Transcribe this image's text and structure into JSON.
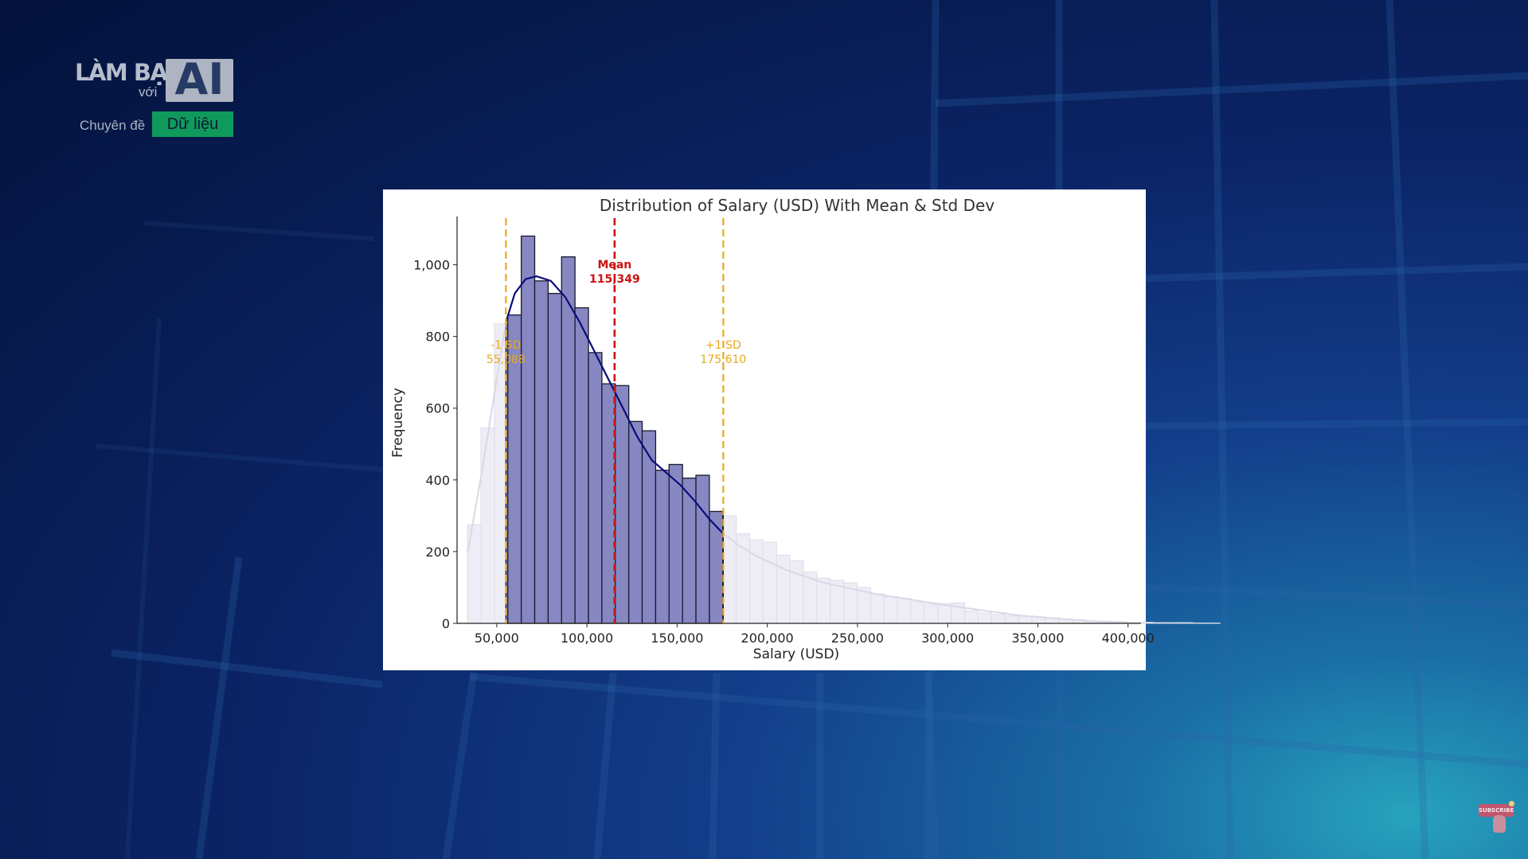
{
  "logo": {
    "brand_top": "LÀM BẠN",
    "brand_voi": "với",
    "brand_ai": "AI",
    "topic_prefix": "Chuyên đề",
    "topic_tag": "Dữ liệu",
    "tag_color": "#0f9a5c"
  },
  "subscribe": {
    "label": "SUBSCRIBE",
    "icon": "pointer-hand-icon"
  },
  "chart_data": {
    "type": "bar",
    "title": "Distribution of Salary (USD) With Mean & Std Dev",
    "xlabel": "Salary (USD)",
    "ylabel": "Frequency",
    "xlim": [
      28000,
      405000
    ],
    "ylim": [
      0,
      1130
    ],
    "x_ticks": [
      50000,
      100000,
      150000,
      200000,
      250000,
      300000,
      350000,
      400000
    ],
    "x_tick_labels": [
      "50,000",
      "100,000",
      "150,000",
      "200,000",
      "250,000",
      "300,000",
      "350,000",
      "400,000"
    ],
    "y_ticks": [
      0,
      200,
      400,
      600,
      800,
      1000
    ],
    "y_tick_labels": [
      "0",
      "200",
      "400",
      "600",
      "800",
      "1,000"
    ],
    "bin_start": 33800,
    "bin_width": 7450,
    "counts": [
      275,
      545,
      835,
      860,
      1080,
      955,
      920,
      1022,
      880,
      755,
      668,
      663,
      563,
      537,
      427,
      443,
      405,
      413,
      312,
      300,
      250,
      233,
      226,
      190,
      175,
      143,
      126,
      120,
      113,
      100,
      82,
      75,
      70,
      60,
      53,
      55,
      57,
      35,
      29,
      25,
      21,
      20,
      18,
      15,
      12,
      10,
      7,
      6,
      5,
      3,
      3,
      2,
      2,
      2,
      1,
      1
    ],
    "highlight_range": [
      55088,
      175610
    ],
    "colors": {
      "highlight_bar": "#8787c2",
      "highlight_edge": "#1a1a2e",
      "faded_bar": "#eeedf5",
      "faded_edge": "#dddcea",
      "kde": "#0a0a7a",
      "kde_faded": "#d9d8e6",
      "mean": "#cc1111",
      "sd": "#e8aa1c"
    },
    "kde": {
      "x": [
        34000,
        42000,
        50000,
        55088,
        60000,
        66000,
        72000,
        80000,
        88000,
        96000,
        104000,
        112000,
        120000,
        128000,
        136000,
        144000,
        152000,
        160000,
        168000,
        175610,
        185000,
        195000,
        210000,
        230000,
        260000,
        300000,
        340000,
        380000,
        400000
      ],
      "y": [
        200,
        430,
        680,
        840,
        920,
        960,
        968,
        955,
        910,
        840,
        760,
        680,
        600,
        520,
        455,
        420,
        385,
        340,
        290,
        250,
        215,
        185,
        150,
        115,
        82,
        50,
        22,
        6,
        2
      ]
    },
    "annotations": [
      {
        "kind": "mean",
        "x": 115349,
        "line1": "Mean",
        "line2": "115,349"
      },
      {
        "kind": "minus-sd",
        "x": 55088,
        "line1": "-1 SD",
        "line2": "55,088"
      },
      {
        "kind": "plus-sd",
        "x": 175610,
        "line1": "+1 SD",
        "line2": "175,610"
      }
    ],
    "grid": false,
    "legend": "none"
  }
}
